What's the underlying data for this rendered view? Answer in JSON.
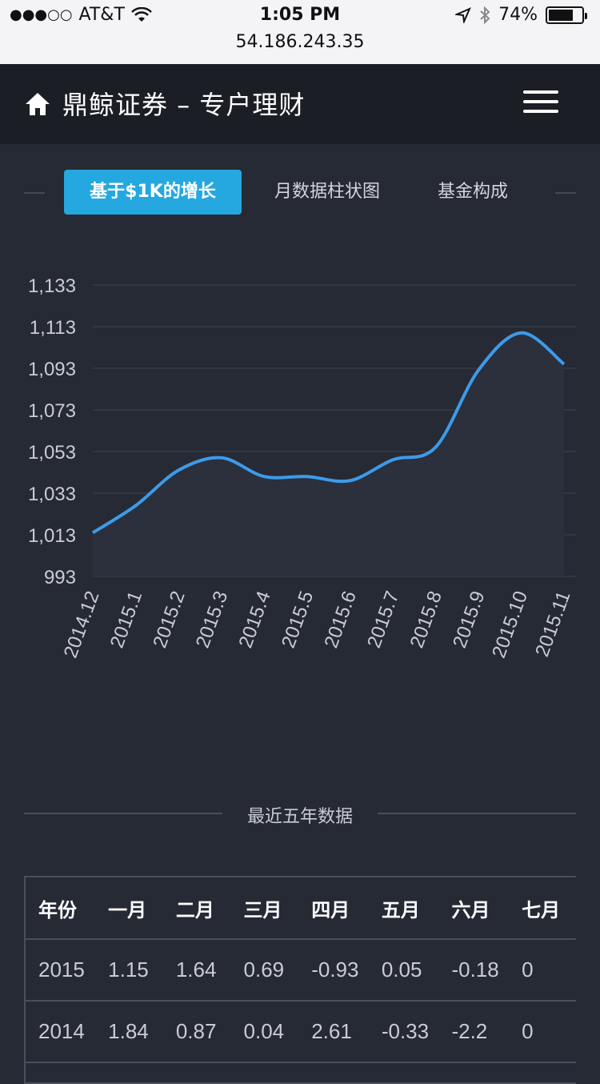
{
  "status_bar": {
    "carrier": "AT&T",
    "time": "1:05 PM",
    "battery": "74%",
    "battery_level": 0.74,
    "url": "54.186.243.35",
    "icons": [
      "signal-dots-icon",
      "wifi-icon",
      "location-icon",
      "bluetooth-icon",
      "battery-icon"
    ]
  },
  "header": {
    "title": "鼎鲸证券 – 专户理财",
    "icons": [
      "home-icon",
      "menu-icon"
    ]
  },
  "tabs": [
    {
      "label": "基于$1K的增长",
      "active": true
    },
    {
      "label": "月数据柱状图",
      "active": false
    },
    {
      "label": "基金构成",
      "active": false
    }
  ],
  "chart_data": {
    "type": "area",
    "x": [
      "2014.12",
      "2015.1",
      "2015.2",
      "2015.3",
      "2015.4",
      "2015.5",
      "2015.6",
      "2015.7",
      "2015.8",
      "2015.9",
      "2015.10",
      "2015.11"
    ],
    "series": [
      {
        "values": [
          1014,
          1027,
          1044,
          1050,
          1041,
          1041,
          1039,
          1049,
          1055,
          1092,
          1110,
          1095
        ]
      }
    ],
    "yticks": [
      "1,133",
      "1,113",
      "1,093",
      "1,073",
      "1,053",
      "1,033",
      "1,013",
      "993"
    ],
    "ylim": [
      993,
      1133
    ],
    "grid": true,
    "line_color": "#3d9be9",
    "fill_color": "#2b303c"
  },
  "section": {
    "title": "最近五年数据"
  },
  "table": {
    "headers": [
      "年份",
      "一月",
      "二月",
      "三月",
      "四月",
      "五月",
      "六月",
      "七月"
    ],
    "rows": [
      [
        "2015",
        "1.15",
        "1.64",
        "0.69",
        "-0.93",
        "0.05",
        "-0.18",
        "0"
      ],
      [
        "2014",
        "1.84",
        "0.87",
        "0.04",
        "2.61",
        "-0.33",
        "-2.2",
        "0"
      ]
    ]
  }
}
